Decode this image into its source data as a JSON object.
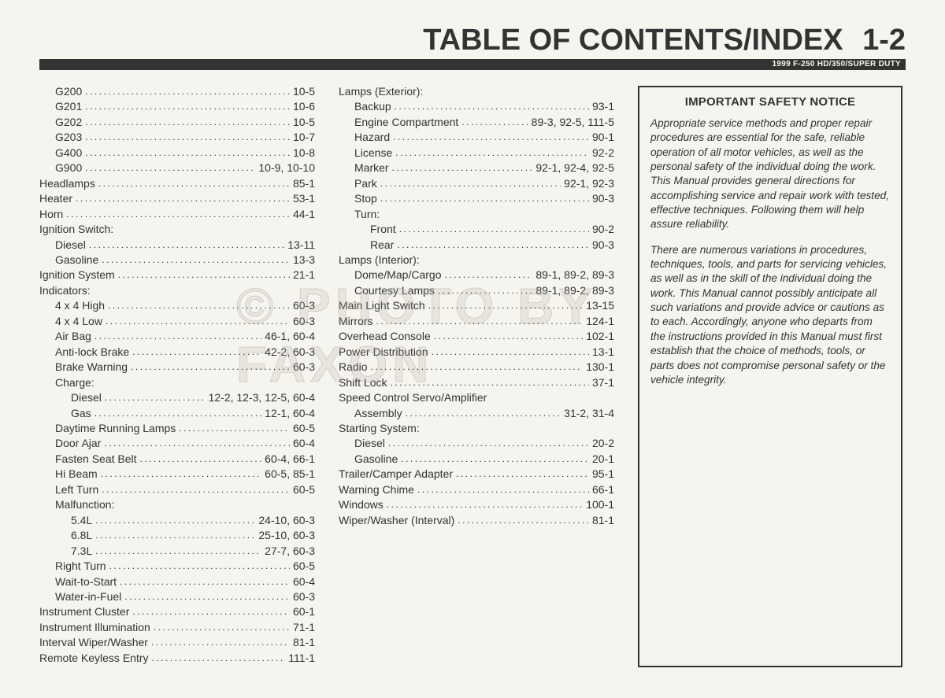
{
  "header": {
    "title": "TABLE OF CONTENTS/INDEX",
    "page_number": "1-2",
    "subtitle": "1999 F-250 HD/350/SUPER DUTY"
  },
  "watermark": "© PHOTO BY FAXON",
  "col1": [
    {
      "indent": 1,
      "label": "G200",
      "page": "10-5"
    },
    {
      "indent": 1,
      "label": "G201",
      "page": "10-6"
    },
    {
      "indent": 1,
      "label": "G202",
      "page": "10-5"
    },
    {
      "indent": 1,
      "label": "G203",
      "page": "10-7"
    },
    {
      "indent": 1,
      "label": "G400",
      "page": "10-8"
    },
    {
      "indent": 1,
      "label": "G900",
      "page": "10-9, 10-10"
    },
    {
      "indent": 0,
      "label": "Headlamps",
      "page": "85-1"
    },
    {
      "indent": 0,
      "label": "Heater",
      "page": "53-1"
    },
    {
      "indent": 0,
      "label": "Horn",
      "page": "44-1"
    },
    {
      "indent": 0,
      "label": "Ignition Switch:",
      "page": "",
      "colon": true
    },
    {
      "indent": 1,
      "label": "Diesel",
      "page": "13-11"
    },
    {
      "indent": 1,
      "label": "Gasoline",
      "page": "13-3"
    },
    {
      "indent": 0,
      "label": "Ignition System",
      "page": "21-1"
    },
    {
      "indent": 0,
      "label": "Indicators:",
      "page": "",
      "colon": true
    },
    {
      "indent": 1,
      "label": "4 x 4 High",
      "page": "60-3"
    },
    {
      "indent": 1,
      "label": "4 x 4 Low",
      "page": "60-3"
    },
    {
      "indent": 1,
      "label": "Air Bag",
      "page": "46-1, 60-4"
    },
    {
      "indent": 1,
      "label": "Anti-lock Brake",
      "page": "42-2, 60-3"
    },
    {
      "indent": 1,
      "label": "Brake Warning",
      "page": "60-3"
    },
    {
      "indent": 1,
      "label": "Charge:",
      "page": "",
      "colon": true
    },
    {
      "indent": 2,
      "label": "Diesel",
      "page": "12-2, 12-3, 12-5, 60-4"
    },
    {
      "indent": 2,
      "label": "Gas",
      "page": "12-1, 60-4"
    },
    {
      "indent": 1,
      "label": "Daytime Running Lamps",
      "page": "60-5"
    },
    {
      "indent": 1,
      "label": "Door Ajar",
      "page": "60-4"
    },
    {
      "indent": 1,
      "label": "Fasten Seat Belt",
      "page": "60-4, 66-1"
    },
    {
      "indent": 1,
      "label": "Hi Beam",
      "page": "60-5, 85-1"
    },
    {
      "indent": 1,
      "label": "Left Turn",
      "page": "60-5"
    },
    {
      "indent": 1,
      "label": "Malfunction:",
      "page": "",
      "colon": true
    },
    {
      "indent": 2,
      "label": "5.4L",
      "page": "24-10, 60-3"
    },
    {
      "indent": 2,
      "label": "6.8L",
      "page": "25-10, 60-3"
    },
    {
      "indent": 2,
      "label": "7.3L",
      "page": "27-7, 60-3"
    },
    {
      "indent": 1,
      "label": "Right Turn",
      "page": "60-5"
    },
    {
      "indent": 1,
      "label": "Wait-to-Start",
      "page": "60-4"
    },
    {
      "indent": 1,
      "label": "Water-in-Fuel",
      "page": "60-3"
    },
    {
      "indent": 0,
      "label": "Instrument Cluster",
      "page": "60-1"
    },
    {
      "indent": 0,
      "label": "Instrument Illumination",
      "page": "71-1"
    },
    {
      "indent": 0,
      "label": "Interval Wiper/Washer",
      "page": "81-1"
    },
    {
      "indent": 0,
      "label": "Remote Keyless Entry",
      "page": "111-1"
    }
  ],
  "col2": [
    {
      "indent": 0,
      "label": "Lamps (Exterior):",
      "page": "",
      "colon": true
    },
    {
      "indent": 1,
      "label": "Backup",
      "page": "93-1"
    },
    {
      "indent": 1,
      "label": "Engine Compartment",
      "page": "89-3, 92-5, 111-5"
    },
    {
      "indent": 1,
      "label": "Hazard",
      "page": "90-1"
    },
    {
      "indent": 1,
      "label": "License",
      "page": "92-2"
    },
    {
      "indent": 1,
      "label": "Marker",
      "page": "92-1, 92-4, 92-5"
    },
    {
      "indent": 1,
      "label": "Park",
      "page": "92-1, 92-3"
    },
    {
      "indent": 1,
      "label": "Stop",
      "page": "90-3"
    },
    {
      "indent": 1,
      "label": "Turn:",
      "page": "",
      "colon": true
    },
    {
      "indent": 2,
      "label": "Front",
      "page": "90-2"
    },
    {
      "indent": 2,
      "label": "Rear",
      "page": "90-3"
    },
    {
      "indent": 0,
      "label": "Lamps (Interior):",
      "page": "",
      "colon": true
    },
    {
      "indent": 1,
      "label": "Dome/Map/Cargo",
      "page": "89-1, 89-2, 89-3"
    },
    {
      "indent": 1,
      "label": "Courtesy Lamps",
      "page": "89-1, 89-2, 89-3"
    },
    {
      "indent": 0,
      "label": "Main Light Switch",
      "page": "13-15"
    },
    {
      "indent": 0,
      "label": "Mirrors",
      "page": "124-1"
    },
    {
      "indent": 0,
      "label": "Overhead Console",
      "page": "102-1"
    },
    {
      "indent": 0,
      "label": "Power Distribution",
      "page": "13-1"
    },
    {
      "indent": 0,
      "label": "Radio",
      "page": "130-1"
    },
    {
      "indent": 0,
      "label": "Shift Lock",
      "page": "37-1"
    },
    {
      "indent": 0,
      "label": "Speed Control Servo/Amplifier",
      "page": "",
      "nopage": true
    },
    {
      "indent": 1,
      "label": "Assembly",
      "page": "31-2, 31-4"
    },
    {
      "indent": 0,
      "label": "Starting System:",
      "page": "",
      "colon": true
    },
    {
      "indent": 1,
      "label": "Diesel",
      "page": "20-2"
    },
    {
      "indent": 1,
      "label": "Gasoline",
      "page": "20-1"
    },
    {
      "indent": 0,
      "label": "Trailer/Camper Adapter",
      "page": "95-1"
    },
    {
      "indent": 0,
      "label": "Warning Chime",
      "page": "66-1"
    },
    {
      "indent": 0,
      "label": "Windows",
      "page": "100-1"
    },
    {
      "indent": 0,
      "label": "Wiper/Washer (Interval)",
      "page": "81-1"
    }
  ],
  "notice": {
    "title": "IMPORTANT SAFETY NOTICE",
    "para1": "Appropriate service methods and proper repair procedures are essential for the safe, reliable operation of all motor vehicles, as well as the personal safety of the individual doing the work. This Manual provides general directions for accomplishing service and repair work with tested, effective techniques. Following them will help assure reliability.",
    "para2": "There are numerous variations in procedures, techniques, tools, and parts for servicing vehicles, as well as in the skill of the individual doing the work. This Manual cannot possibly anticipate all such variations and provide advice or cautions as to each. Accordingly, anyone who departs from the instructions provided in this Manual must first establish that the choice of methods, tools, or parts does not compromise personal safety or the vehicle integrity."
  }
}
